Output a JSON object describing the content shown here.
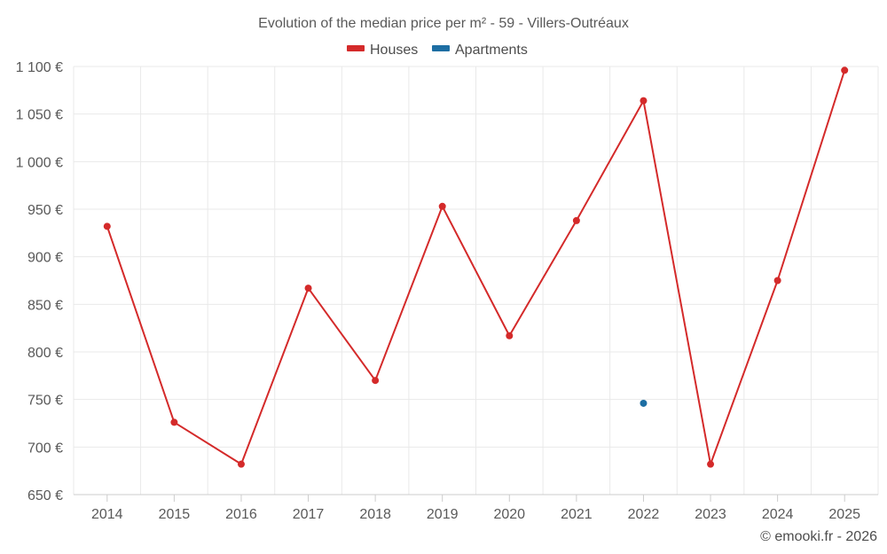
{
  "chart_data": {
    "type": "line",
    "title": "Evolution of the median price per m² - 59 - Villers-Outréaux",
    "categories": [
      "2014",
      "2015",
      "2016",
      "2017",
      "2018",
      "2019",
      "2020",
      "2021",
      "2022",
      "2023",
      "2024",
      "2025"
    ],
    "ylim": [
      650,
      1100
    ],
    "yticks": [
      650,
      700,
      750,
      800,
      850,
      900,
      950,
      1000,
      1050,
      1100
    ],
    "ytick_labels": [
      "650 €",
      "700 €",
      "750 €",
      "800 €",
      "850 €",
      "900 €",
      "950 €",
      "1 000 €",
      "1 050 €",
      "1 100 €"
    ],
    "grid": true,
    "legend_position": "top-center",
    "series": [
      {
        "name": "Houses",
        "color": "#d42a2a",
        "values": [
          932,
          726,
          682,
          867,
          770,
          953,
          817,
          938,
          1064,
          682,
          875,
          1096
        ]
      },
      {
        "name": "Apartments",
        "color": "#1d6ea3",
        "values": [
          null,
          null,
          null,
          null,
          null,
          null,
          null,
          null,
          746,
          null,
          null,
          null
        ]
      }
    ]
  },
  "credit": "© emooki.fr - 2026"
}
